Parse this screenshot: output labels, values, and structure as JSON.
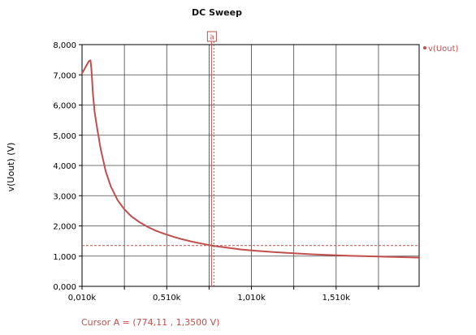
{
  "chart_data": {
    "type": "line",
    "title": "DC Sweep",
    "xlabel": "",
    "ylabel": "v(Uout) (V)",
    "xlim": [
      10,
      2000
    ],
    "ylim": [
      0,
      8
    ],
    "x_ticks": [
      {
        "value": 10,
        "label": "0,010k"
      },
      {
        "value": 510,
        "label": "0,510k"
      },
      {
        "value": 1010,
        "label": "1,010k"
      },
      {
        "value": 1510,
        "label": "1,510k"
      }
    ],
    "x_grid": [
      10,
      260,
      510,
      760,
      1010,
      1260,
      1510,
      1760
    ],
    "y_ticks": [
      {
        "value": 0,
        "label": "0,000"
      },
      {
        "value": 1,
        "label": "1,000"
      },
      {
        "value": 2,
        "label": "2,000"
      },
      {
        "value": 3,
        "label": "3,000"
      },
      {
        "value": 4,
        "label": "4,000"
      },
      {
        "value": 5,
        "label": "5,000"
      },
      {
        "value": 6,
        "label": "6,000"
      },
      {
        "value": 7,
        "label": "7,000"
      },
      {
        "value": 8,
        "label": "8,000"
      }
    ],
    "grid": true,
    "legend_position": "top-right",
    "series": [
      {
        "name": "v(Uout)",
        "color": "#c0504d",
        "x": [
          10,
          20,
          30,
          40,
          50,
          60,
          65,
          75,
          85,
          100,
          120,
          150,
          180,
          220,
          260,
          300,
          350,
          400,
          450,
          500,
          550,
          600,
          650,
          700,
          774,
          850,
          950,
          1050,
          1150,
          1300,
          1450,
          1600,
          1800,
          2000
        ],
        "y": [
          7.05,
          7.15,
          7.25,
          7.35,
          7.45,
          7.48,
          7.2,
          6.3,
          5.75,
          5.2,
          4.55,
          3.8,
          3.3,
          2.85,
          2.55,
          2.32,
          2.12,
          1.96,
          1.83,
          1.73,
          1.64,
          1.56,
          1.49,
          1.43,
          1.35,
          1.29,
          1.22,
          1.17,
          1.13,
          1.08,
          1.04,
          1.01,
          0.98,
          0.95
        ]
      }
    ],
    "cursor": {
      "tag": "a",
      "x": 774.11,
      "y": 1.35,
      "readout": "Cursor A = (774,11 , 1,3500 V)",
      "color": "#c0504d"
    }
  }
}
